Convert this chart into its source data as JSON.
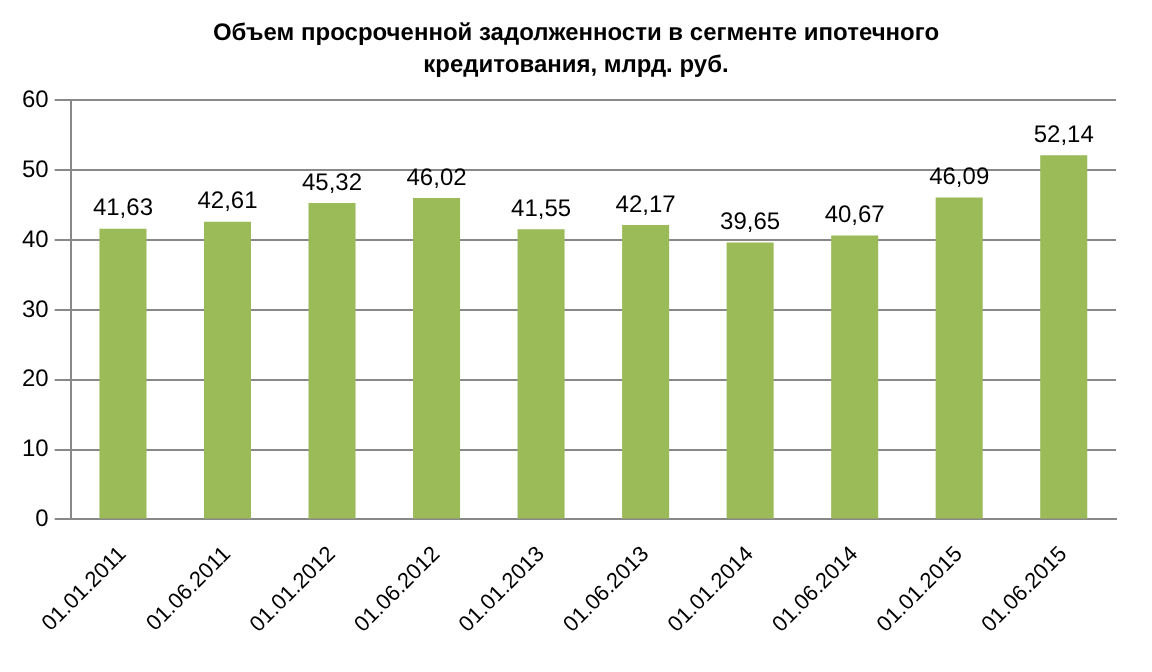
{
  "chart_data": {
    "type": "bar",
    "title": "Объем просроченной задолженности в сегменте ипотечного кредитования, млрд. руб.",
    "categories": [
      "01.01.2011",
      "01.06.2011",
      "01.01.2012",
      "01.06.2012",
      "01.01.2013",
      "01.06.2013",
      "01.01.2014",
      "01.06.2014",
      "01.01.2015",
      "01.06.2015"
    ],
    "values": [
      41.63,
      42.61,
      45.32,
      46.02,
      41.55,
      42.17,
      39.65,
      40.67,
      46.09,
      52.14
    ],
    "value_labels": [
      "41,63",
      "42,61",
      "45,32",
      "46,02",
      "41,55",
      "42,17",
      "39,65",
      "40,67",
      "46,09",
      "52,14"
    ],
    "color": "#9bbb59",
    "ylim": [
      0,
      60
    ],
    "yticks": [
      0,
      10,
      20,
      30,
      40,
      50,
      60
    ],
    "grid": "y"
  }
}
